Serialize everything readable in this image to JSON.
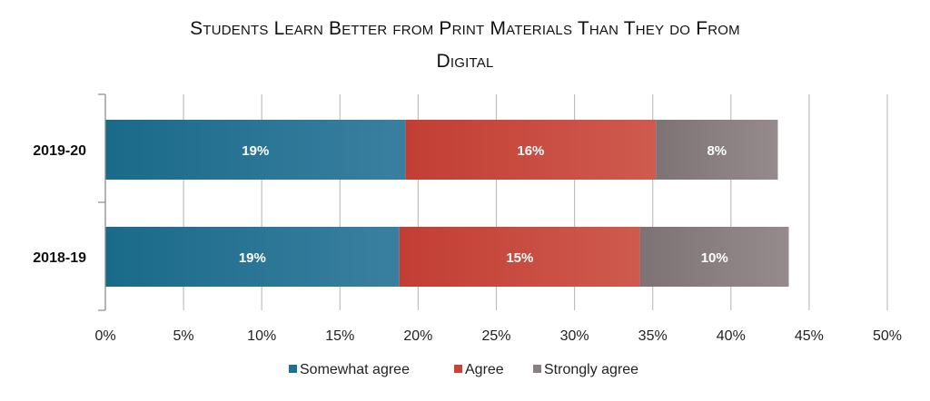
{
  "chart_data": {
    "type": "bar",
    "orientation": "horizontal",
    "stacked": true,
    "title_lines": [
      "Students Learn Better from Print Materials Than They do From",
      "Digital"
    ],
    "categories": [
      "2019-20",
      "2018-19"
    ],
    "series": [
      {
        "name": "Somewhat agree",
        "values": [
          19.2,
          18.8
        ],
        "labels": [
          "19%",
          "19%"
        ],
        "color": "#1f6f8f"
      },
      {
        "name": "Agree",
        "values": [
          16.0,
          15.4
        ],
        "labels": [
          "16%",
          "15%"
        ],
        "color": "#c8443a"
      },
      {
        "name": "Strongly agree",
        "values": [
          7.8,
          9.5
        ],
        "labels": [
          "8%",
          "10%"
        ],
        "color": "#8a7f80"
      }
    ],
    "x_ticks": [
      "0%",
      "5%",
      "10%",
      "15%",
      "20%",
      "25%",
      "30%",
      "35%",
      "40%",
      "45%",
      "50%"
    ],
    "xlim": [
      0,
      50
    ],
    "grid": true,
    "legend_position": "bottom"
  }
}
